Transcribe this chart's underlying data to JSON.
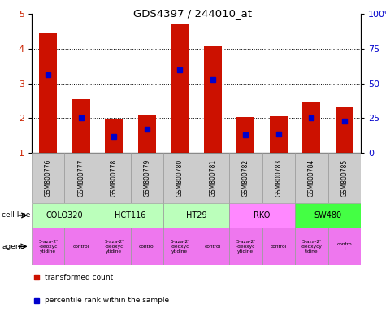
{
  "title": "GDS4397 / 244010_at",
  "samples": [
    "GSM800776",
    "GSM800777",
    "GSM800778",
    "GSM800779",
    "GSM800780",
    "GSM800781",
    "GSM800782",
    "GSM800783",
    "GSM800784",
    "GSM800785"
  ],
  "transformed_counts": [
    4.45,
    2.55,
    1.97,
    2.08,
    4.72,
    4.06,
    2.04,
    2.06,
    2.48,
    2.32
  ],
  "percentile_ranks": [
    3.25,
    2.0,
    1.47,
    1.68,
    3.38,
    3.1,
    1.52,
    1.55,
    2.0,
    1.92
  ],
  "ylim_left": [
    1,
    5
  ],
  "ylim_right": [
    0,
    100
  ],
  "yticks_left": [
    1,
    2,
    3,
    4,
    5
  ],
  "yticks_right": [
    0,
    25,
    50,
    75,
    100
  ],
  "cell_lines": [
    {
      "name": "COLO320",
      "start": 0,
      "end": 2,
      "color": "#bbffbb"
    },
    {
      "name": "HCT116",
      "start": 2,
      "end": 4,
      "color": "#bbffbb"
    },
    {
      "name": "HT29",
      "start": 4,
      "end": 6,
      "color": "#bbffbb"
    },
    {
      "name": "RKO",
      "start": 6,
      "end": 8,
      "color": "#ff88ff"
    },
    {
      "name": "SW480",
      "start": 8,
      "end": 10,
      "color": "#44ff44"
    }
  ],
  "agents": [
    {
      "name": "5-aza-2'\n-deoxyc\nytidine",
      "start": 0,
      "end": 1,
      "color": "#ee77ee"
    },
    {
      "name": "control",
      "start": 1,
      "end": 2,
      "color": "#ee77ee"
    },
    {
      "name": "5-aza-2'\n-deoxyc\nytidine",
      "start": 2,
      "end": 3,
      "color": "#ee77ee"
    },
    {
      "name": "control",
      "start": 3,
      "end": 4,
      "color": "#ee77ee"
    },
    {
      "name": "5-aza-2'\n-deoxyc\nytidine",
      "start": 4,
      "end": 5,
      "color": "#ee77ee"
    },
    {
      "name": "control",
      "start": 5,
      "end": 6,
      "color": "#ee77ee"
    },
    {
      "name": "5-aza-2'\n-deoxyc\nytidine",
      "start": 6,
      "end": 7,
      "color": "#ee77ee"
    },
    {
      "name": "control",
      "start": 7,
      "end": 8,
      "color": "#ee77ee"
    },
    {
      "name": "5-aza-2'\n-deoxycy\ntidine",
      "start": 8,
      "end": 9,
      "color": "#ee77ee"
    },
    {
      "name": "contro\nl",
      "start": 9,
      "end": 10,
      "color": "#ee77ee"
    }
  ],
  "bar_color": "#cc1100",
  "percentile_color": "#0000cc",
  "grid_color": "#000000",
  "tick_label_color_left": "#cc2200",
  "tick_label_color_right": "#0000cc",
  "bar_width": 0.55,
  "percentile_marker_size": 4,
  "sample_row_color": "#cccccc",
  "legend_red_label": "transformed count",
  "legend_blue_label": "percentile rank within the sample"
}
